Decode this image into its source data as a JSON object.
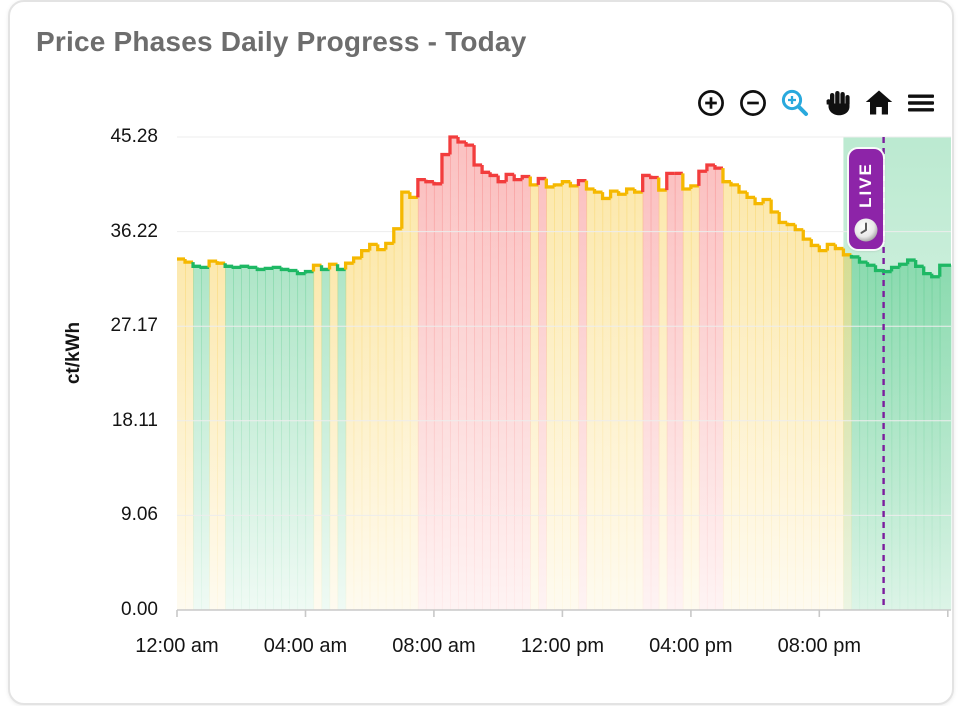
{
  "card": {
    "title": "Price Phases Daily Progress - Today"
  },
  "toolbar": {
    "icons": [
      "zoom-in",
      "zoom-out",
      "box-zoom",
      "pan",
      "reset-home",
      "menu"
    ]
  },
  "colors": {
    "accent_blue": "#29a9dd",
    "purple": "#8d24a8",
    "title_gray": "#6d6d6d",
    "axis_line": "#c8c8c8",
    "gridline": "#ededed"
  },
  "live": {
    "label": "LIVE",
    "now_hour": 22.0,
    "window_start_hour": 20.75,
    "window_end_hour": 24.1
  },
  "chart_data": {
    "type": "area",
    "subtype": "step-area-phase-colored",
    "title": "Price Phases Daily Progress - Today",
    "ylabel": "ct/kWh",
    "xlabel": "",
    "ylim": [
      0,
      45.28
    ],
    "xlim_hours": [
      0,
      24.1
    ],
    "grid": "horizontal",
    "legend": "none",
    "y_ticks": [
      {
        "value": 0,
        "label": "0.00"
      },
      {
        "value": 9.056,
        "label": "9.06"
      },
      {
        "value": 18.112,
        "label": "18.11"
      },
      {
        "value": 27.168,
        "label": "27.17"
      },
      {
        "value": 36.224,
        "label": "36.22"
      },
      {
        "value": 45.28,
        "label": "45.28"
      }
    ],
    "x_ticks": [
      {
        "hour": 0,
        "label": "12:00 am"
      },
      {
        "hour": 4,
        "label": "04:00 am"
      },
      {
        "hour": 8,
        "label": "08:00 am"
      },
      {
        "hour": 12,
        "label": "12:00 pm"
      },
      {
        "hour": 16,
        "label": "04:00 pm"
      },
      {
        "hour": 20,
        "label": "08:00 pm"
      }
    ],
    "x_tick_mark_hours": [
      0,
      4,
      8,
      12,
      16,
      20,
      24
    ],
    "start_time": "00:00",
    "step_minutes": 15,
    "unit": "ct/kWh",
    "phase_colors": {
      "g": "#1eb864",
      "y": "#f5b800",
      "r": "#f23d3d"
    },
    "values": [
      33.6,
      33.3,
      32.9,
      32.8,
      33.4,
      33.2,
      32.9,
      32.8,
      32.9,
      32.8,
      32.6,
      32.7,
      32.8,
      32.6,
      32.5,
      32.2,
      32.4,
      33.0,
      32.6,
      33.1,
      32.6,
      33.2,
      33.7,
      34.4,
      35.0,
      34.5,
      35.1,
      36.5,
      40.0,
      39.5,
      41.2,
      41.0,
      40.8,
      43.6,
      45.28,
      44.8,
      44.5,
      42.6,
      41.9,
      41.6,
      41.0,
      41.7,
      41.2,
      41.5,
      40.7,
      41.3,
      40.5,
      40.7,
      41.0,
      40.6,
      41.1,
      40.3,
      40.0,
      39.4,
      40.1,
      39.8,
      40.3,
      40.0,
      41.6,
      41.4,
      40.2,
      41.8,
      41.8,
      40.3,
      40.6,
      42.0,
      42.6,
      42.3,
      41.0,
      40.7,
      40.0,
      39.5,
      38.9,
      39.3,
      38.1,
      37.1,
      36.9,
      36.4,
      35.5,
      34.9,
      34.4,
      35.0,
      34.6,
      34.0,
      33.8,
      33.3,
      33.0,
      32.5,
      32.4,
      32.8,
      33.1,
      33.5,
      32.9,
      32.2,
      31.9,
      33.0
    ],
    "phase_groups": [
      "yygg",
      "yygg",
      "gggg",
      "gggg",
      "gygy",
      "gyyy",
      "yyyy",
      "yyrr",
      "rrrr",
      "rrrr",
      "rrrr",
      "yryy",
      "yyry",
      "yyyy",
      "yyrr",
      "yrry",
      "yrrr",
      "yyyy",
      "yyyy",
      "yyyy",
      "yyyy",
      "gggg",
      "gggg",
      "gggg"
    ]
  }
}
